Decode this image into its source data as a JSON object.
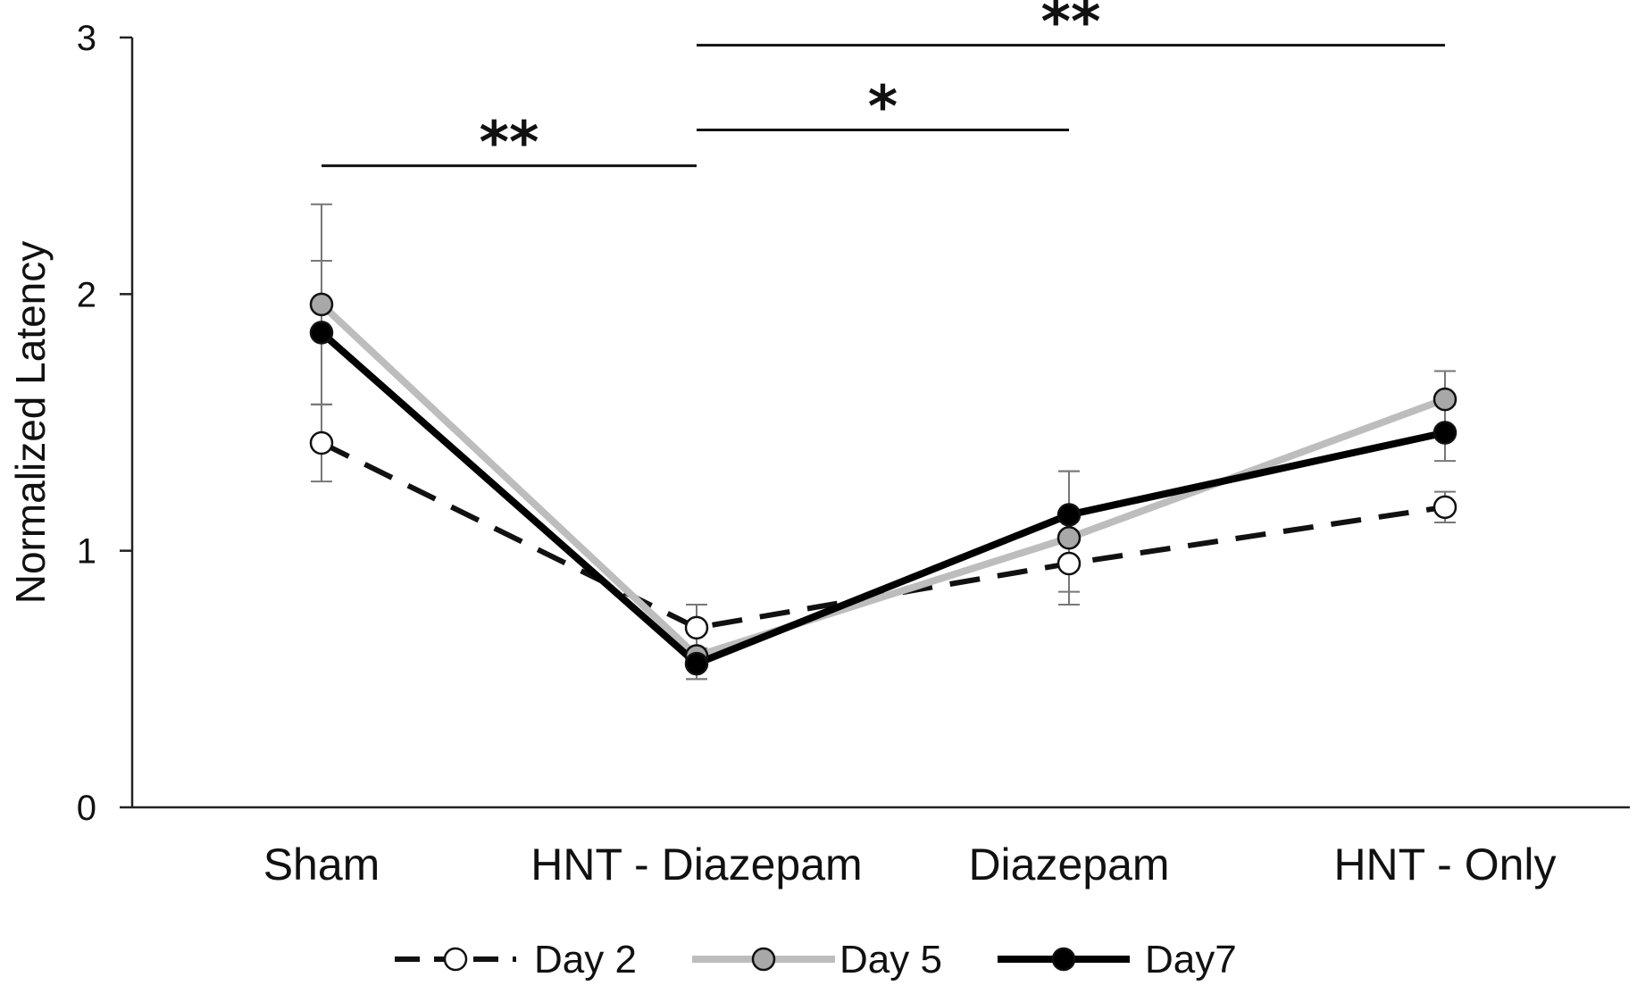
{
  "chart_data": {
    "type": "line",
    "title": "",
    "xlabel": "",
    "ylabel": "Normalized Latency",
    "ylim": [
      0,
      3
    ],
    "yticks": [
      0,
      1,
      2,
      3
    ],
    "categories": [
      "Sham",
      "HNT - Diazepam",
      "Diazepam",
      "HNT - Only"
    ],
    "series": [
      {
        "name": "Day 2",
        "values": [
          1.42,
          0.7,
          0.95,
          1.17
        ],
        "errors": [
          0.15,
          0.09,
          0.11,
          0.06
        ],
        "line_color": "#111111",
        "marker_fill": "#ffffff",
        "dash": true
      },
      {
        "name": "Day 5",
        "values": [
          1.96,
          0.59,
          1.05,
          1.59
        ],
        "errors": [
          0.39,
          0.09,
          0.26,
          0.11
        ],
        "line_color": "#bdbdbd",
        "marker_fill": "#a8a8a8",
        "dash": false
      },
      {
        "name": "Day7",
        "values": [
          1.85,
          0.56,
          1.14,
          1.46
        ],
        "errors": [
          0.28,
          0.06,
          0.17,
          0.11
        ],
        "line_color": "#000000",
        "marker_fill": "#000000",
        "dash": false
      }
    ],
    "significance": [
      {
        "from": 0,
        "to": 1,
        "level": 2.5,
        "label": "**"
      },
      {
        "from": 1,
        "to": 2,
        "level": 2.64,
        "label": "*"
      },
      {
        "from": 1,
        "to": 3,
        "level": 2.97,
        "label": "**"
      }
    ],
    "legend": {
      "position": "bottom",
      "entries": [
        "Day 2",
        "Day 5",
        "Day7"
      ]
    }
  }
}
